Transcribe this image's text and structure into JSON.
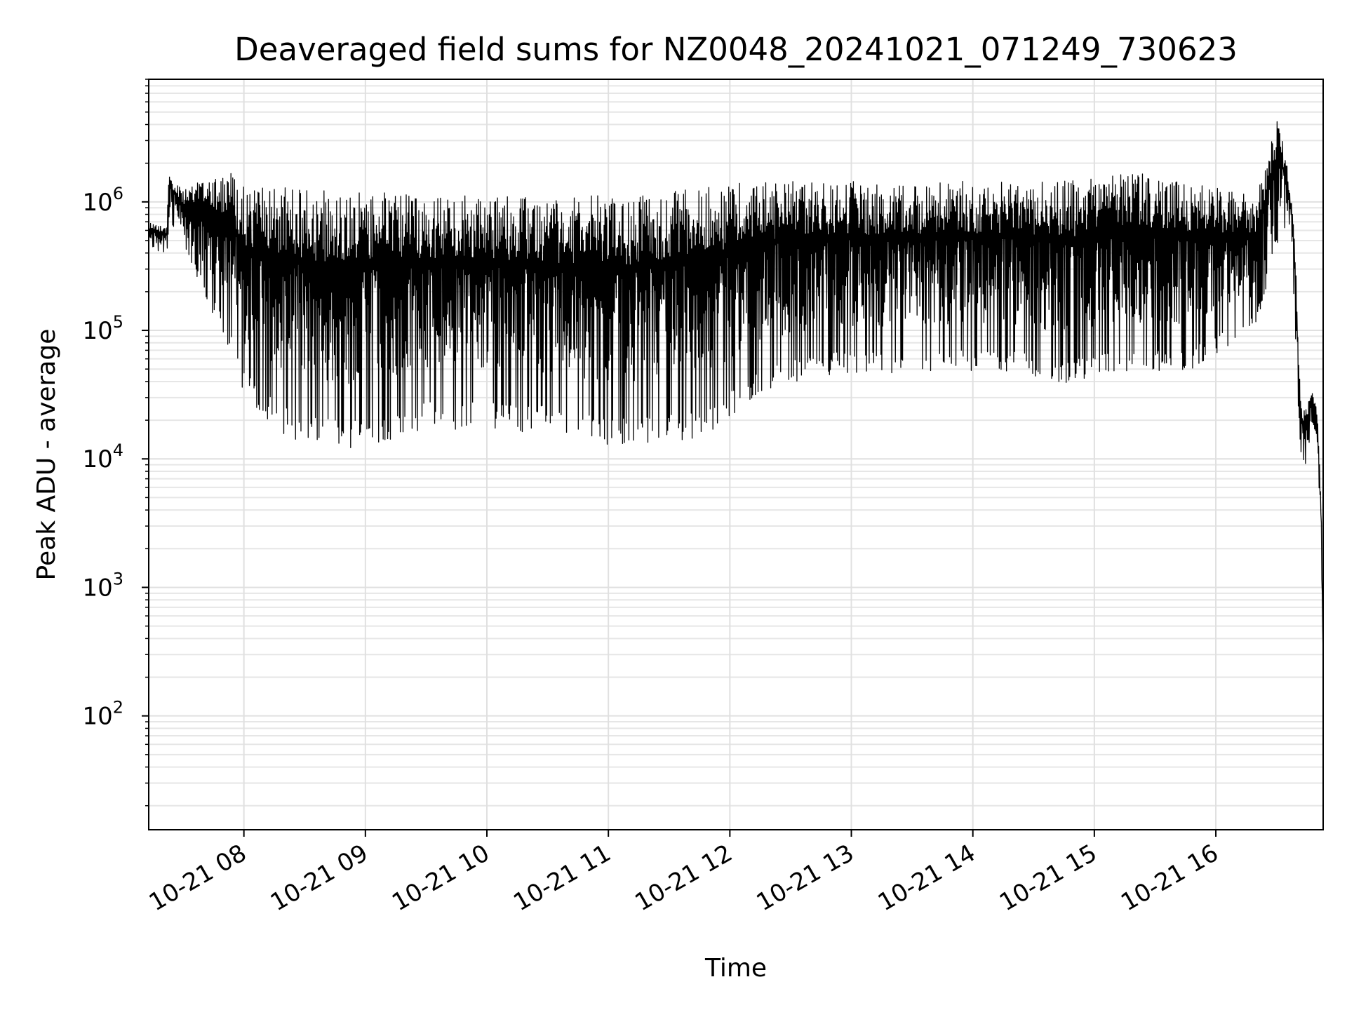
{
  "chart_data": {
    "type": "line",
    "title": "Deaveraged field sums for NZ0048_20241021_071249_730623",
    "xlabel": "Time",
    "ylabel": "Peak ADU - average",
    "yscale": "log",
    "ylim": [
      13,
      9000000
    ],
    "xlim": [
      "2024-10-21 07:13",
      "2024-10-21 16:53"
    ],
    "grid": true,
    "x_ticks": [
      {
        "label": "10-21 08",
        "t": "2024-10-21 08:00"
      },
      {
        "label": "10-21 09",
        "t": "2024-10-21 09:00"
      },
      {
        "label": "10-21 10",
        "t": "2024-10-21 10:00"
      },
      {
        "label": "10-21 11",
        "t": "2024-10-21 11:00"
      },
      {
        "label": "10-21 12",
        "t": "2024-10-21 12:00"
      },
      {
        "label": "10-21 13",
        "t": "2024-10-21 13:00"
      },
      {
        "label": "10-21 14",
        "t": "2024-10-21 14:00"
      },
      {
        "label": "10-21 15",
        "t": "2024-10-21 15:00"
      },
      {
        "label": "10-21 16",
        "t": "2024-10-21 16:00"
      }
    ],
    "y_ticks": [
      {
        "base": "10",
        "exp": "2",
        "value": 100
      },
      {
        "base": "10",
        "exp": "3",
        "value": 1000
      },
      {
        "base": "10",
        "exp": "4",
        "value": 10000
      },
      {
        "base": "10",
        "exp": "5",
        "value": 100000
      },
      {
        "base": "10",
        "exp": "6",
        "value": 1000000
      }
    ],
    "series": [
      {
        "color": "#000000",
        "x_unit": "time",
        "envelope": [
          {
            "t": "2024-10-21 07:13",
            "upper": 700000,
            "lower": 450000
          },
          {
            "t": "2024-10-21 07:22",
            "upper": 650000,
            "lower": 380000
          },
          {
            "t": "2024-10-21 07:23",
            "upper": 1800000,
            "lower": 700000
          },
          {
            "t": "2024-10-21 07:30",
            "upper": 1200000,
            "lower": 450000
          },
          {
            "t": "2024-10-21 07:45",
            "upper": 1900000,
            "lower": 130000
          },
          {
            "t": "2024-10-21 07:55",
            "upper": 1700000,
            "lower": 60000
          },
          {
            "t": "2024-10-21 08:00",
            "upper": 1300000,
            "lower": 30000
          },
          {
            "t": "2024-10-21 08:20",
            "upper": 1300000,
            "lower": 15000
          },
          {
            "t": "2024-10-21 08:50",
            "upper": 1200000,
            "lower": 11000
          },
          {
            "t": "2024-10-21 09:30",
            "upper": 1150000,
            "lower": 17000
          },
          {
            "t": "2024-10-21 10:00",
            "upper": 1100000,
            "lower": 17000
          },
          {
            "t": "2024-10-21 10:40",
            "upper": 1100000,
            "lower": 15000
          },
          {
            "t": "2024-10-21 11:10",
            "upper": 1150000,
            "lower": 12000
          },
          {
            "t": "2024-10-21 11:45",
            "upper": 1300000,
            "lower": 14000
          },
          {
            "t": "2024-10-21 12:15",
            "upper": 1450000,
            "lower": 32000
          },
          {
            "t": "2024-10-21 12:45",
            "upper": 1450000,
            "lower": 45000
          },
          {
            "t": "2024-10-21 13:30",
            "upper": 1450000,
            "lower": 45000
          },
          {
            "t": "2024-10-21 14:10",
            "upper": 1450000,
            "lower": 50000
          },
          {
            "t": "2024-10-21 14:45",
            "upper": 1450000,
            "lower": 37000
          },
          {
            "t": "2024-10-21 15:15",
            "upper": 1700000,
            "lower": 47000
          },
          {
            "t": "2024-10-21 15:45",
            "upper": 1550000,
            "lower": 47000
          },
          {
            "t": "2024-10-21 16:20",
            "upper": 1100000,
            "lower": 100000
          },
          {
            "t": "2024-10-21 16:31",
            "upper": 4800000,
            "lower": 500000
          },
          {
            "t": "2024-10-21 16:35",
            "upper": 2000000,
            "lower": 600000
          },
          {
            "t": "2024-10-21 16:38",
            "upper": 1000000,
            "lower": 300000
          },
          {
            "t": "2024-10-21 16:40",
            "upper": 200000,
            "lower": 40000
          },
          {
            "t": "2024-10-21 16:42",
            "upper": 25000,
            "lower": 11000
          },
          {
            "t": "2024-10-21 16:45",
            "upper": 25000,
            "lower": 8000
          },
          {
            "t": "2024-10-21 16:47",
            "upper": 35000,
            "lower": 20000
          },
          {
            "t": "2024-10-21 16:50",
            "upper": 25000,
            "lower": 15000
          },
          {
            "t": "2024-10-21 16:52",
            "upper": 5000,
            "lower": 2000
          },
          {
            "t": "2024-10-21 16:53",
            "upper": 300,
            "lower": 200
          }
        ]
      }
    ]
  }
}
